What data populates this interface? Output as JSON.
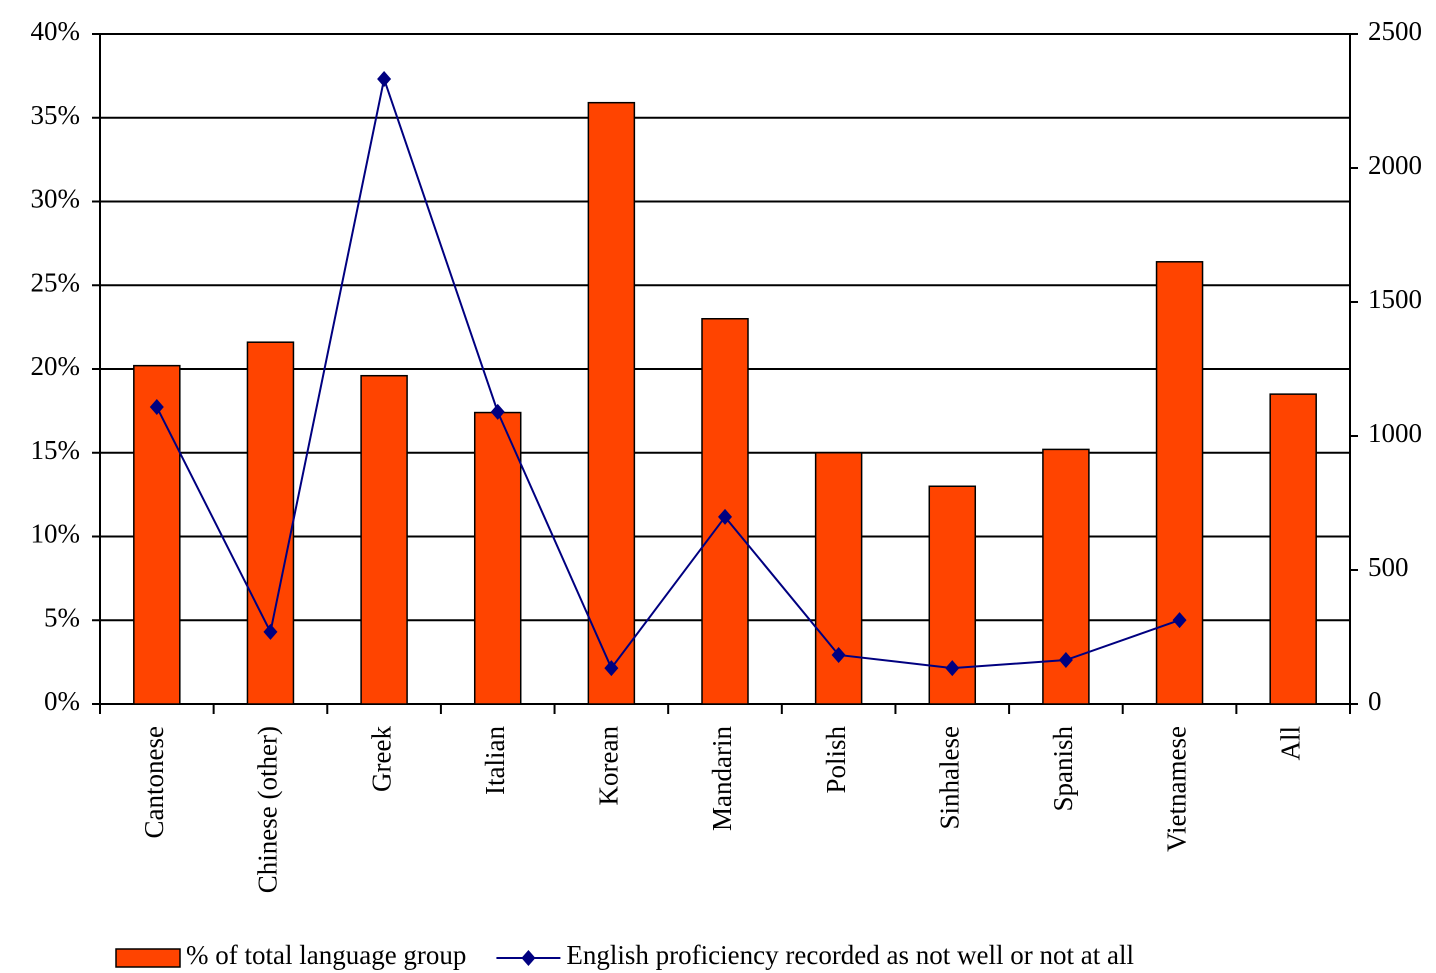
{
  "chart_data": {
    "type": "bar-line",
    "categories": [
      "Cantonese",
      "Chinese (other)",
      "Greek",
      "Italian",
      "Korean",
      "Mandarin",
      "Polish",
      "Sinhalese",
      "Spanish",
      "Vietnamese",
      "All"
    ],
    "series": [
      {
        "name": "% of total language group",
        "type": "bar",
        "color": "#ff4400",
        "values": [
          20.2,
          21.6,
          19.6,
          17.4,
          35.9,
          23.0,
          15.0,
          13.0,
          15.2,
          26.4,
          18.5
        ]
      },
      {
        "name": "English proficiency recorded as not well or not at all",
        "type": "line",
        "axis": "y2",
        "color": "#000080",
        "values": [
          1108,
          269,
          2332,
          1090,
          134,
          698,
          183,
          134,
          164,
          313,
          null
        ]
      }
    ],
    "ylim": [
      0,
      40
    ],
    "yticks": [
      {
        "value": 0,
        "label": "0%"
      },
      {
        "value": 5,
        "label": "5%"
      },
      {
        "value": 10,
        "label": "10%"
      },
      {
        "value": 15,
        "label": "15%"
      },
      {
        "value": 20,
        "label": "20%"
      },
      {
        "value": 25,
        "label": "25%"
      },
      {
        "value": 30,
        "label": "30%"
      },
      {
        "value": 35,
        "label": "35%"
      },
      {
        "value": 40,
        "label": "40%"
      }
    ],
    "y2lim": [
      0,
      2500
    ],
    "y2ticks": [
      0,
      500,
      1000,
      1500,
      2000,
      2500
    ],
    "grid": true
  }
}
